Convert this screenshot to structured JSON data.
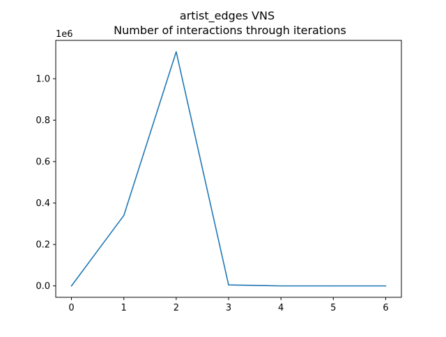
{
  "chart_data": {
    "type": "line",
    "title_line1": "artist_edges VNS",
    "title_line2": "Number of interactions through iterations",
    "xlabel": "",
    "ylabel": "",
    "offset_label": "1e6",
    "x": [
      0,
      1,
      2,
      3,
      4,
      5,
      6
    ],
    "series": [
      {
        "values": [
          0,
          0.34,
          1.13,
          0.005,
          0.0,
          0.0,
          0.0
        ],
        "color": "#1f77b4"
      }
    ],
    "xlim": [
      -0.3,
      6.3
    ],
    "ylim": [
      -0.055,
      1.185
    ],
    "xticks": [
      0,
      1,
      2,
      3,
      4,
      5,
      6
    ],
    "xtick_labels": [
      "0",
      "1",
      "2",
      "3",
      "4",
      "5",
      "6"
    ],
    "yticks": [
      0.0,
      0.2,
      0.4,
      0.6,
      0.8,
      1.0
    ],
    "ytick_labels": [
      "0.0",
      "0.2",
      "0.4",
      "0.6",
      "0.8",
      "1.0"
    ],
    "grid": false,
    "legend": "none"
  }
}
